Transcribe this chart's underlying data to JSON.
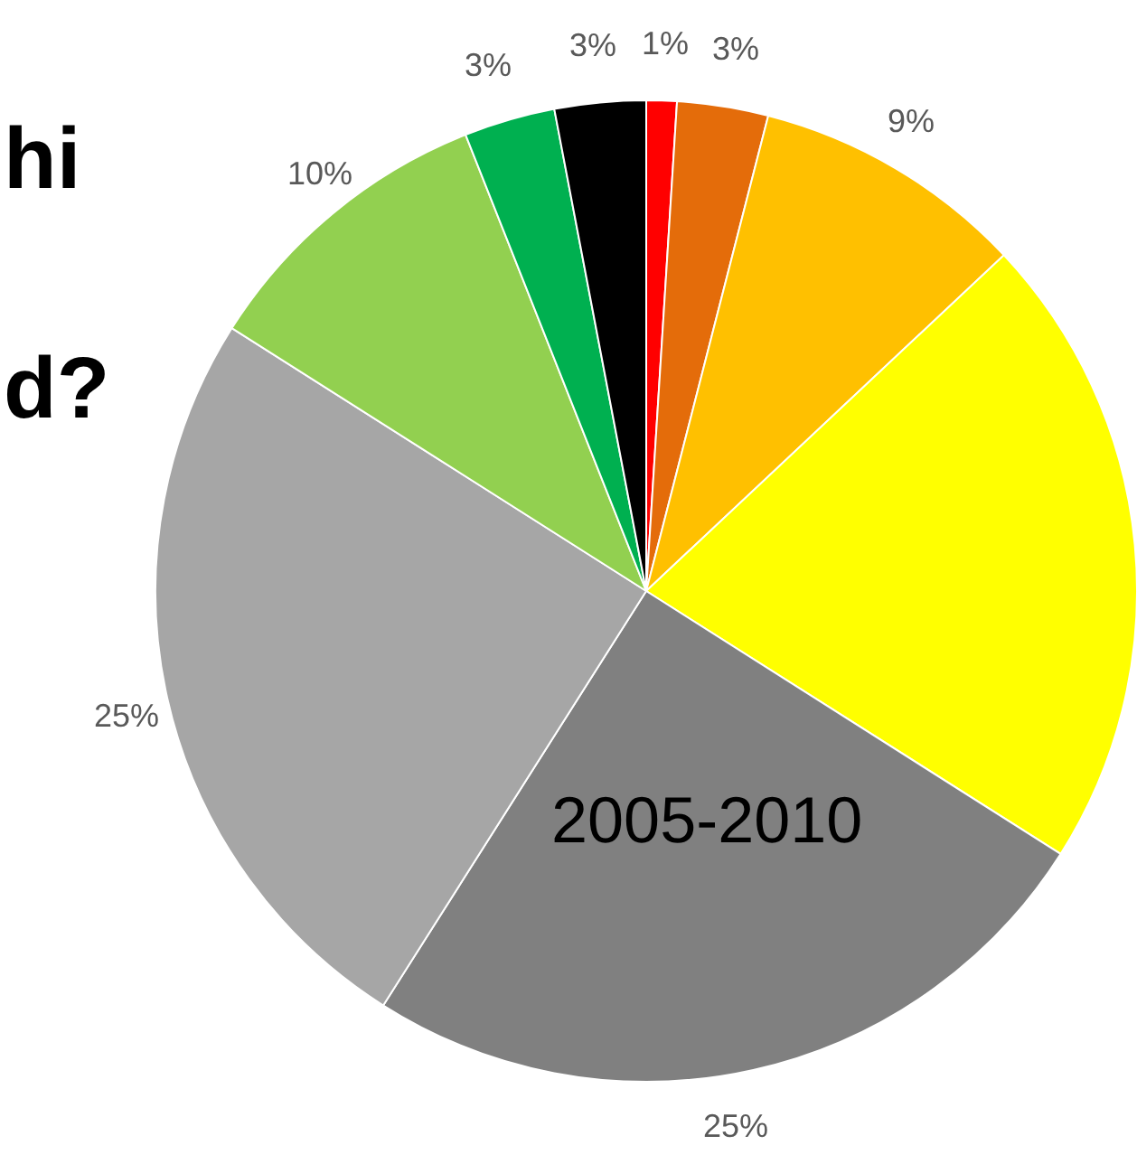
{
  "chart_data": {
    "type": "pie",
    "categories": [
      null,
      null,
      null,
      null,
      "2005-2010",
      null,
      null,
      null,
      null
    ],
    "values": [
      1,
      3,
      9,
      21,
      25,
      25,
      10,
      3,
      3
    ],
    "colors": [
      "#ff0000",
      "#e46c0a",
      "#ffc000",
      "#ffff00",
      "#808080",
      "#a6a6a6",
      "#92d050",
      "#00b050",
      "#000000"
    ],
    "value_labels": [
      "1%",
      "3%",
      "9%",
      null,
      "25%",
      "25%",
      "10%",
      "3%",
      "3%"
    ],
    "annotations": [
      "hi",
      "d?"
    ]
  }
}
